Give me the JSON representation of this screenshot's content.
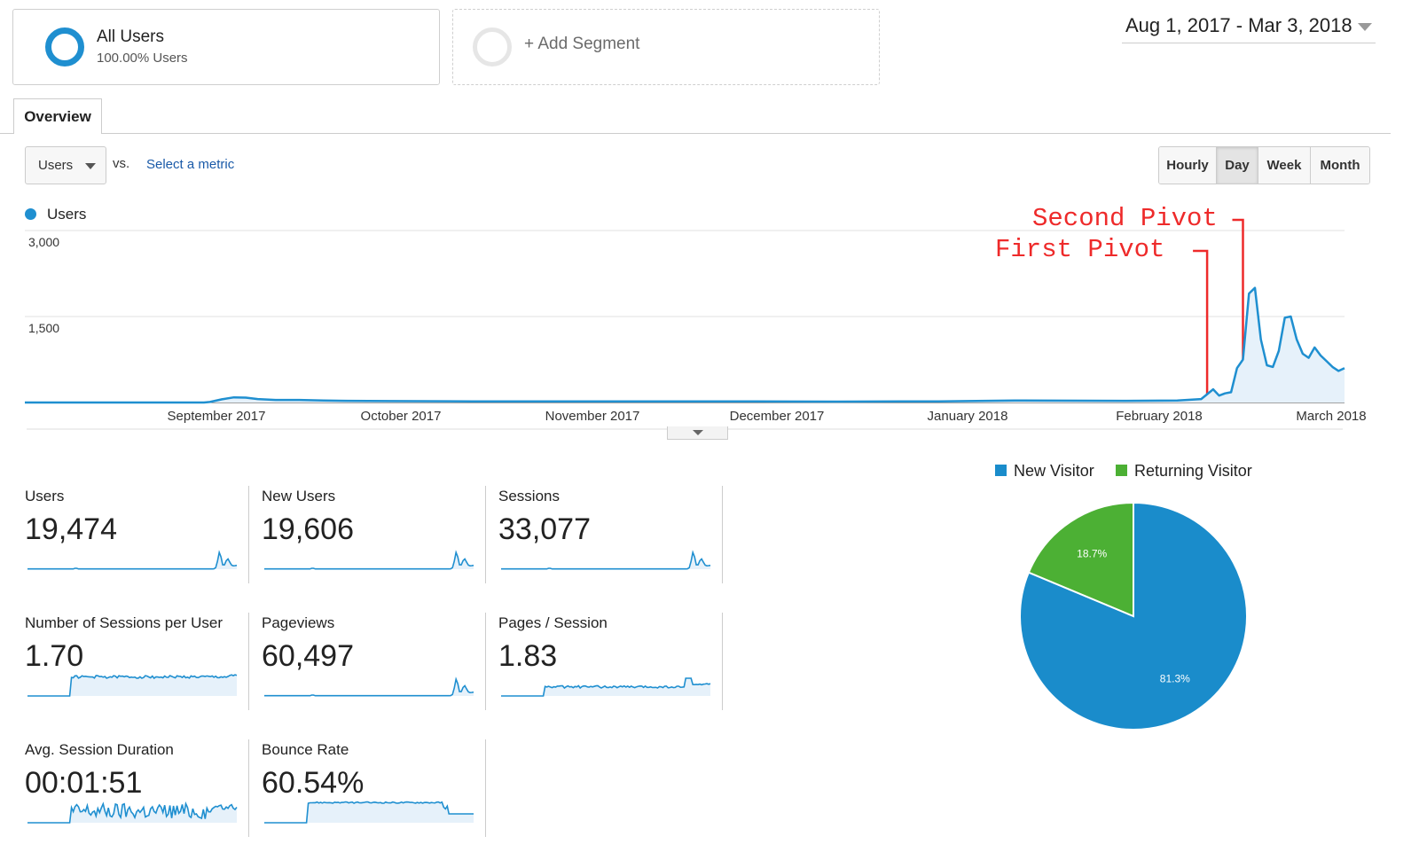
{
  "segments": {
    "all_users": {
      "title": "All Users",
      "subtitle": "100.00% Users"
    },
    "add_segment": {
      "label": "+ Add Segment"
    }
  },
  "date_range": {
    "label": "Aug 1, 2017 - Mar 3, 2018"
  },
  "tabs": [
    {
      "label": "Overview",
      "active": true
    }
  ],
  "metric_selector": {
    "selected": "Users",
    "vs_label": "vs.",
    "compare_link": "Select a metric"
  },
  "granularity": {
    "options": [
      "Hourly",
      "Day",
      "Week",
      "Month"
    ],
    "active": "Day"
  },
  "colors": {
    "accent": "#1f8fd0",
    "returning": "#4cb034",
    "annotation": "#ee2a2a"
  },
  "annotations": [
    {
      "label": "First Pivot",
      "date": "2018-02-15"
    },
    {
      "label": "Second Pivot",
      "date": "2018-02-21"
    }
  ],
  "chart_data": [
    {
      "type": "area",
      "series": [
        {
          "name": "Users",
          "points": [
            [
              "2017-08-01",
              0
            ],
            [
              "2017-08-20",
              0
            ],
            [
              "2017-08-31",
              0
            ],
            [
              "2017-09-01",
              10
            ],
            [
              "2017-09-03",
              55
            ],
            [
              "2017-09-05",
              90
            ],
            [
              "2017-09-07",
              85
            ],
            [
              "2017-09-09",
              60
            ],
            [
              "2017-09-12",
              45
            ],
            [
              "2017-09-16",
              45
            ],
            [
              "2017-09-20",
              35
            ],
            [
              "2017-09-24",
              30
            ],
            [
              "2017-10-01",
              25
            ],
            [
              "2017-10-15",
              20
            ],
            [
              "2017-11-01",
              18
            ],
            [
              "2017-11-15",
              20
            ],
            [
              "2017-12-01",
              18
            ],
            [
              "2017-12-15",
              15
            ],
            [
              "2018-01-01",
              20
            ],
            [
              "2018-01-15",
              35
            ],
            [
              "2018-02-01",
              30
            ],
            [
              "2018-02-10",
              35
            ],
            [
              "2018-02-14",
              60
            ],
            [
              "2018-02-16",
              230
            ],
            [
              "2018-02-17",
              120
            ],
            [
              "2018-02-18",
              160
            ],
            [
              "2018-02-19",
              180
            ],
            [
              "2018-02-20",
              600
            ],
            [
              "2018-02-21",
              750
            ],
            [
              "2018-02-22",
              1900
            ],
            [
              "2018-02-23",
              2000
            ],
            [
              "2018-02-24",
              1100
            ],
            [
              "2018-02-25",
              650
            ],
            [
              "2018-02-26",
              620
            ],
            [
              "2018-02-27",
              900
            ],
            [
              "2018-02-28",
              1480
            ],
            [
              "2018-03-01",
              1500
            ],
            [
              "2018-03-02",
              1100
            ],
            [
              "2018-03-03",
              850
            ],
            [
              "2018-03-04",
              780
            ],
            [
              "2018-03-05",
              960
            ],
            [
              "2018-03-06",
              820
            ],
            [
              "2018-03-07",
              720
            ],
            [
              "2018-03-08",
              620
            ],
            [
              "2018-03-09",
              550
            ],
            [
              "2018-03-10",
              600
            ]
          ]
        }
      ],
      "yticks": [
        "3,000",
        "1,500"
      ],
      "ylim": [
        0,
        3000
      ],
      "xticks": [
        "September 2017",
        "October 2017",
        "November 2017",
        "December 2017",
        "January 2018",
        "February 2018",
        "March 2018"
      ],
      "grid": true,
      "legend": "top-left"
    },
    {
      "type": "pie",
      "labels": [
        "New Visitor",
        "Returning Visitor"
      ],
      "values": [
        81.3,
        18.7
      ],
      "value_labels": [
        "81.3%",
        "18.7%"
      ],
      "colors": [
        "#1a8ccb",
        "#4cb034"
      ],
      "legend": "top"
    }
  ],
  "metrics": [
    {
      "title": "Users",
      "value": "19,474",
      "spark": "spike"
    },
    {
      "title": "New Users",
      "value": "19,606",
      "spark": "spike"
    },
    {
      "title": "Sessions",
      "value": "33,077",
      "spark": "spike"
    },
    {
      "title": "Number of Sessions per User",
      "value": "1.70",
      "spark": "plateau"
    },
    {
      "title": "Pageviews",
      "value": "60,497",
      "spark": "spike"
    },
    {
      "title": "Pages / Session",
      "value": "1.83",
      "spark": "plateau-late"
    },
    {
      "title": "Avg. Session Duration",
      "value": "00:01:51",
      "spark": "noisy"
    },
    {
      "title": "Bounce Rate",
      "value": "60.54%",
      "spark": "bounce"
    }
  ]
}
